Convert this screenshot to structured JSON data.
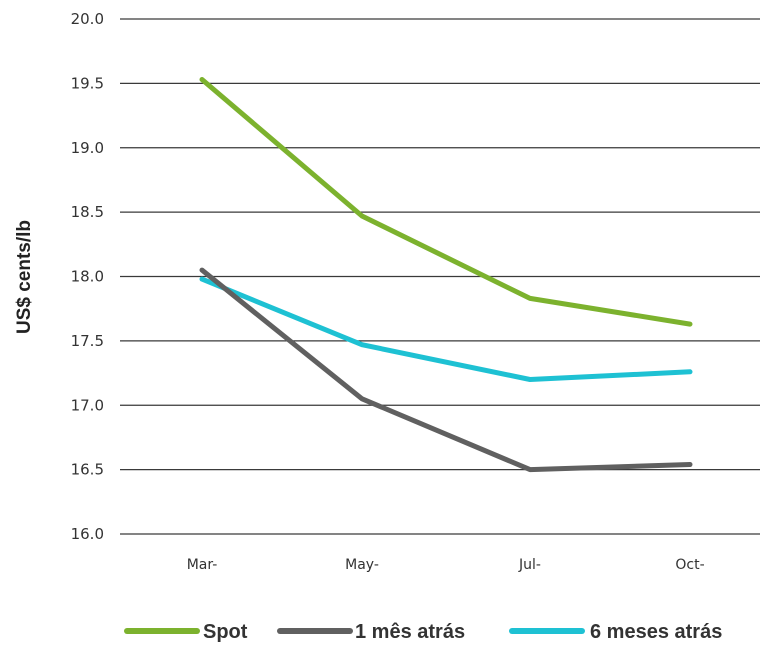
{
  "chart_data": {
    "type": "line",
    "title": "",
    "xlabel": "",
    "ylabel": "US$ cents/lb",
    "categories": [
      "Mar-",
      "May-",
      "Jul-",
      "Oct-"
    ],
    "ylim": [
      16.0,
      20.0
    ],
    "yticks": [
      "20.0",
      "19.5",
      "19.0",
      "18.5",
      "18.0",
      "17.5",
      "17.0",
      "16.5",
      "16.0"
    ],
    "grid": true,
    "legend_position": "bottom",
    "series": [
      {
        "name": "Spot",
        "color": "#7cb22e",
        "values": [
          19.53,
          18.47,
          17.83,
          17.63
        ]
      },
      {
        "name": "1 mês atrás",
        "color": "#606060",
        "values": [
          18.05,
          17.05,
          16.5,
          16.54
        ]
      },
      {
        "name": "6 meses atrás",
        "color": "#1ec1d3",
        "values": [
          17.98,
          17.47,
          17.2,
          17.26
        ]
      }
    ]
  }
}
